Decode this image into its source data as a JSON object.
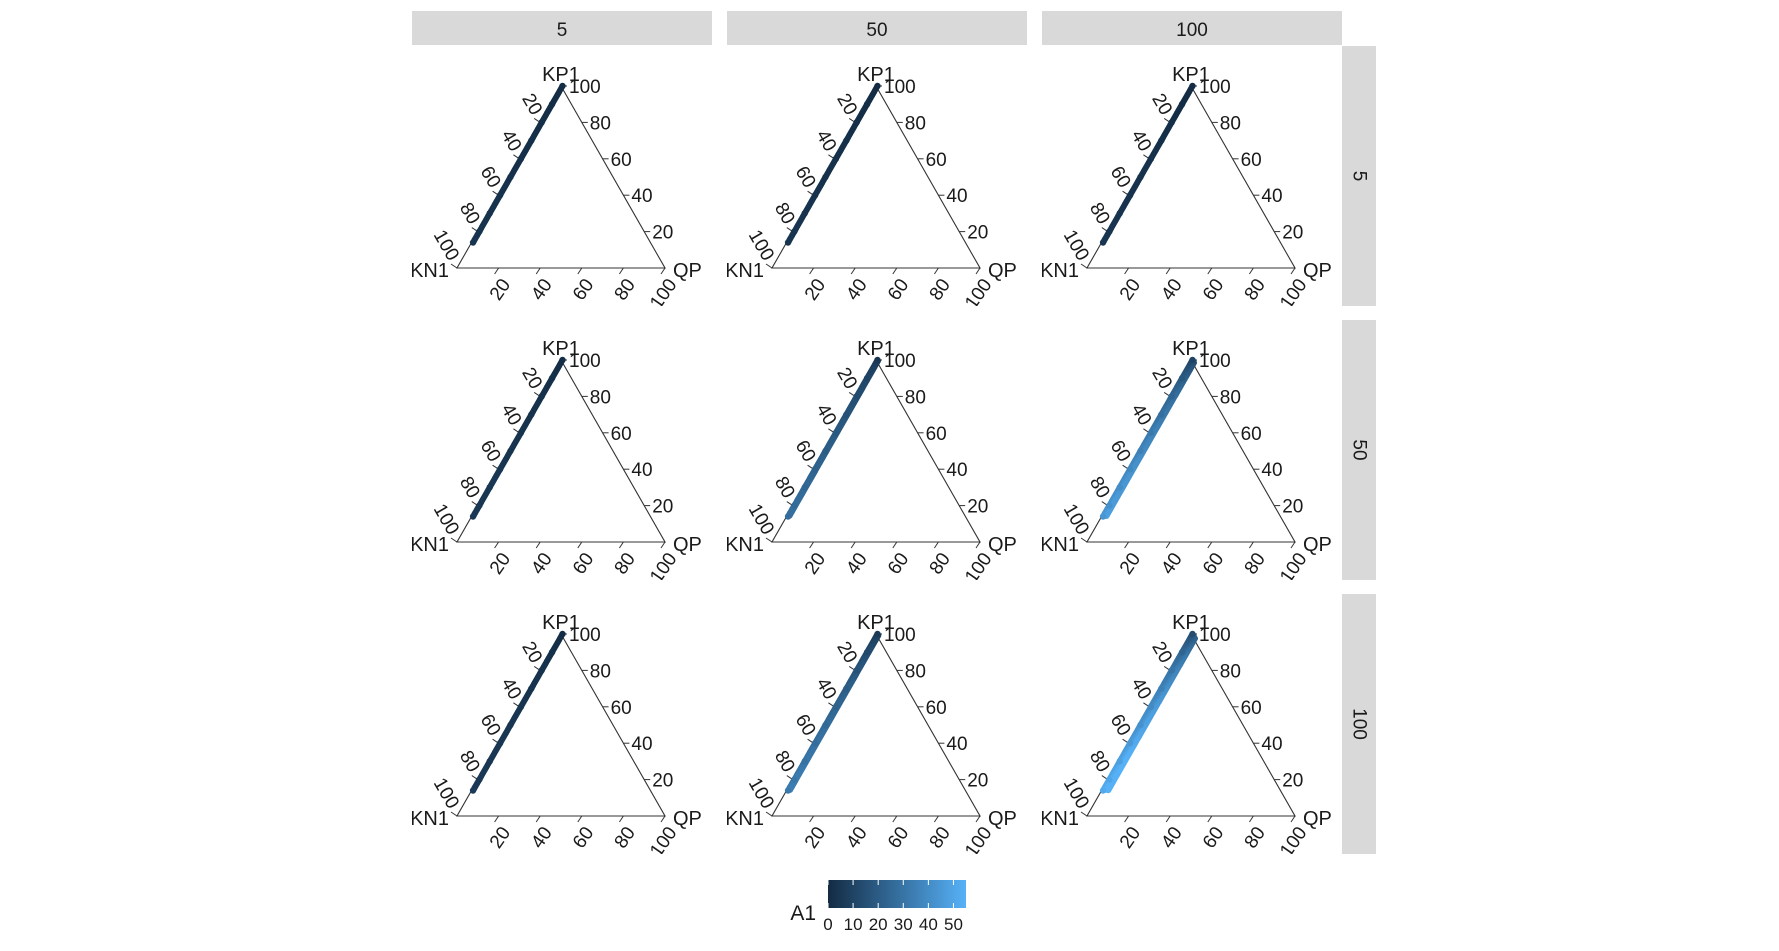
{
  "chart_data": {
    "type": "scatter",
    "kind": "ternary-facet-grid",
    "vertex_labels": {
      "top": "KP1",
      "left": "KN1",
      "right": "QP"
    },
    "ticks": [
      "20",
      "40",
      "60",
      "80",
      "100"
    ],
    "col_strips": [
      "5",
      "50",
      "100"
    ],
    "row_strips": [
      "5",
      "50",
      "100"
    ],
    "color_scale": {
      "title": "A1",
      "low": "#132B43",
      "high": "#56B1F7",
      "range": [
        0,
        55
      ],
      "tick_labels": [
        "0",
        "10",
        "20",
        "30",
        "40",
        "50"
      ]
    },
    "panels": [
      {
        "row": "5",
        "col": "5",
        "qp_max": 0,
        "points": [
          [
            0,
            100,
            0,
            0.5
          ],
          [
            0,
            90,
            10,
            1
          ],
          [
            0,
            80,
            20,
            1.5
          ],
          [
            0,
            70,
            30,
            2
          ],
          [
            0,
            60,
            40,
            2
          ],
          [
            0,
            50,
            50,
            2.5
          ],
          [
            0,
            40,
            60,
            3
          ],
          [
            0,
            30,
            70,
            3
          ],
          [
            0,
            20,
            80,
            3.5
          ],
          [
            0,
            14,
            86,
            4
          ]
        ]
      },
      {
        "row": "5",
        "col": "50",
        "qp_max": 0,
        "points": [
          [
            0,
            100,
            0,
            0.5
          ],
          [
            0,
            90,
            10,
            1
          ],
          [
            0,
            80,
            20,
            1.5
          ],
          [
            0,
            70,
            30,
            2
          ],
          [
            0,
            60,
            40,
            2.5
          ],
          [
            0,
            50,
            50,
            2.5
          ],
          [
            0,
            40,
            60,
            3
          ],
          [
            0,
            30,
            70,
            3.5
          ],
          [
            0,
            20,
            80,
            4
          ],
          [
            0,
            14,
            86,
            4
          ]
        ]
      },
      {
        "row": "5",
        "col": "100",
        "qp_max": 0,
        "points": [
          [
            0,
            100,
            0,
            0.5
          ],
          [
            0,
            90,
            10,
            1
          ],
          [
            0,
            80,
            20,
            1.5
          ],
          [
            0,
            70,
            30,
            2
          ],
          [
            0,
            60,
            40,
            2.5
          ],
          [
            0,
            50,
            50,
            3
          ],
          [
            0,
            40,
            60,
            3
          ],
          [
            0,
            30,
            70,
            3.5
          ],
          [
            0,
            20,
            80,
            4
          ],
          [
            0,
            14,
            86,
            4.5
          ]
        ]
      },
      {
        "row": "50",
        "col": "5",
        "qp_max": 0,
        "points": [
          [
            0,
            100,
            0,
            1
          ],
          [
            0,
            90,
            10,
            2
          ],
          [
            0,
            80,
            20,
            2.5
          ],
          [
            0,
            70,
            30,
            3
          ],
          [
            0,
            60,
            40,
            3.5
          ],
          [
            0,
            50,
            50,
            4
          ],
          [
            0,
            40,
            60,
            4.5
          ],
          [
            0,
            30,
            70,
            5
          ],
          [
            0,
            20,
            80,
            5
          ],
          [
            0,
            14,
            86,
            5.5
          ]
        ]
      },
      {
        "row": "50",
        "col": "50",
        "qp_max": 0.5,
        "points": [
          [
            0,
            100,
            0,
            5
          ],
          [
            0,
            90,
            10,
            10
          ],
          [
            0,
            80,
            20,
            13
          ],
          [
            0,
            70,
            30,
            16
          ],
          [
            0,
            60,
            40,
            18
          ],
          [
            0,
            50,
            50,
            20
          ],
          [
            0,
            40,
            60,
            22
          ],
          [
            0,
            30,
            70,
            24
          ],
          [
            0,
            20,
            80,
            26
          ],
          [
            0,
            14,
            86,
            27
          ]
        ]
      },
      {
        "row": "50",
        "col": "100",
        "qp_max": 1.5,
        "points": [
          [
            0,
            100,
            0,
            10
          ],
          [
            0,
            90,
            10,
            18
          ],
          [
            0,
            80,
            20,
            24
          ],
          [
            0,
            70,
            30,
            28
          ],
          [
            0,
            60,
            40,
            32
          ],
          [
            0,
            50,
            50,
            35
          ],
          [
            0,
            40,
            60,
            38
          ],
          [
            0,
            30,
            70,
            40
          ],
          [
            0,
            20,
            80,
            42
          ],
          [
            0,
            14,
            86,
            44
          ]
        ]
      },
      {
        "row": "100",
        "col": "5",
        "qp_max": 0,
        "points": [
          [
            0,
            100,
            0,
            1
          ],
          [
            0,
            90,
            10,
            2
          ],
          [
            0,
            80,
            20,
            3
          ],
          [
            0,
            70,
            30,
            3.5
          ],
          [
            0,
            60,
            40,
            4
          ],
          [
            0,
            50,
            50,
            4.5
          ],
          [
            0,
            40,
            60,
            5
          ],
          [
            0,
            30,
            70,
            5
          ],
          [
            0,
            20,
            80,
            5.5
          ],
          [
            0,
            14,
            86,
            6
          ]
        ]
      },
      {
        "row": "100",
        "col": "50",
        "qp_max": 0.8,
        "points": [
          [
            0,
            100,
            0,
            6
          ],
          [
            0,
            90,
            10,
            12
          ],
          [
            0,
            80,
            20,
            16
          ],
          [
            0,
            70,
            30,
            20
          ],
          [
            0,
            60,
            40,
            22
          ],
          [
            0,
            50,
            50,
            25
          ],
          [
            0,
            40,
            60,
            27
          ],
          [
            0,
            30,
            70,
            29
          ],
          [
            0,
            20,
            80,
            31
          ],
          [
            0,
            14,
            86,
            32
          ]
        ]
      },
      {
        "row": "100",
        "col": "100",
        "qp_max": 2.5,
        "points": [
          [
            0,
            100,
            0,
            14
          ],
          [
            0,
            90,
            10,
            24
          ],
          [
            0,
            80,
            20,
            30
          ],
          [
            0,
            70,
            30,
            35
          ],
          [
            0,
            60,
            40,
            39
          ],
          [
            0,
            50,
            50,
            42
          ],
          [
            0,
            40,
            60,
            45
          ],
          [
            0,
            30,
            70,
            48
          ],
          [
            0,
            20,
            80,
            50
          ],
          [
            0,
            14,
            86,
            52
          ]
        ]
      }
    ]
  }
}
